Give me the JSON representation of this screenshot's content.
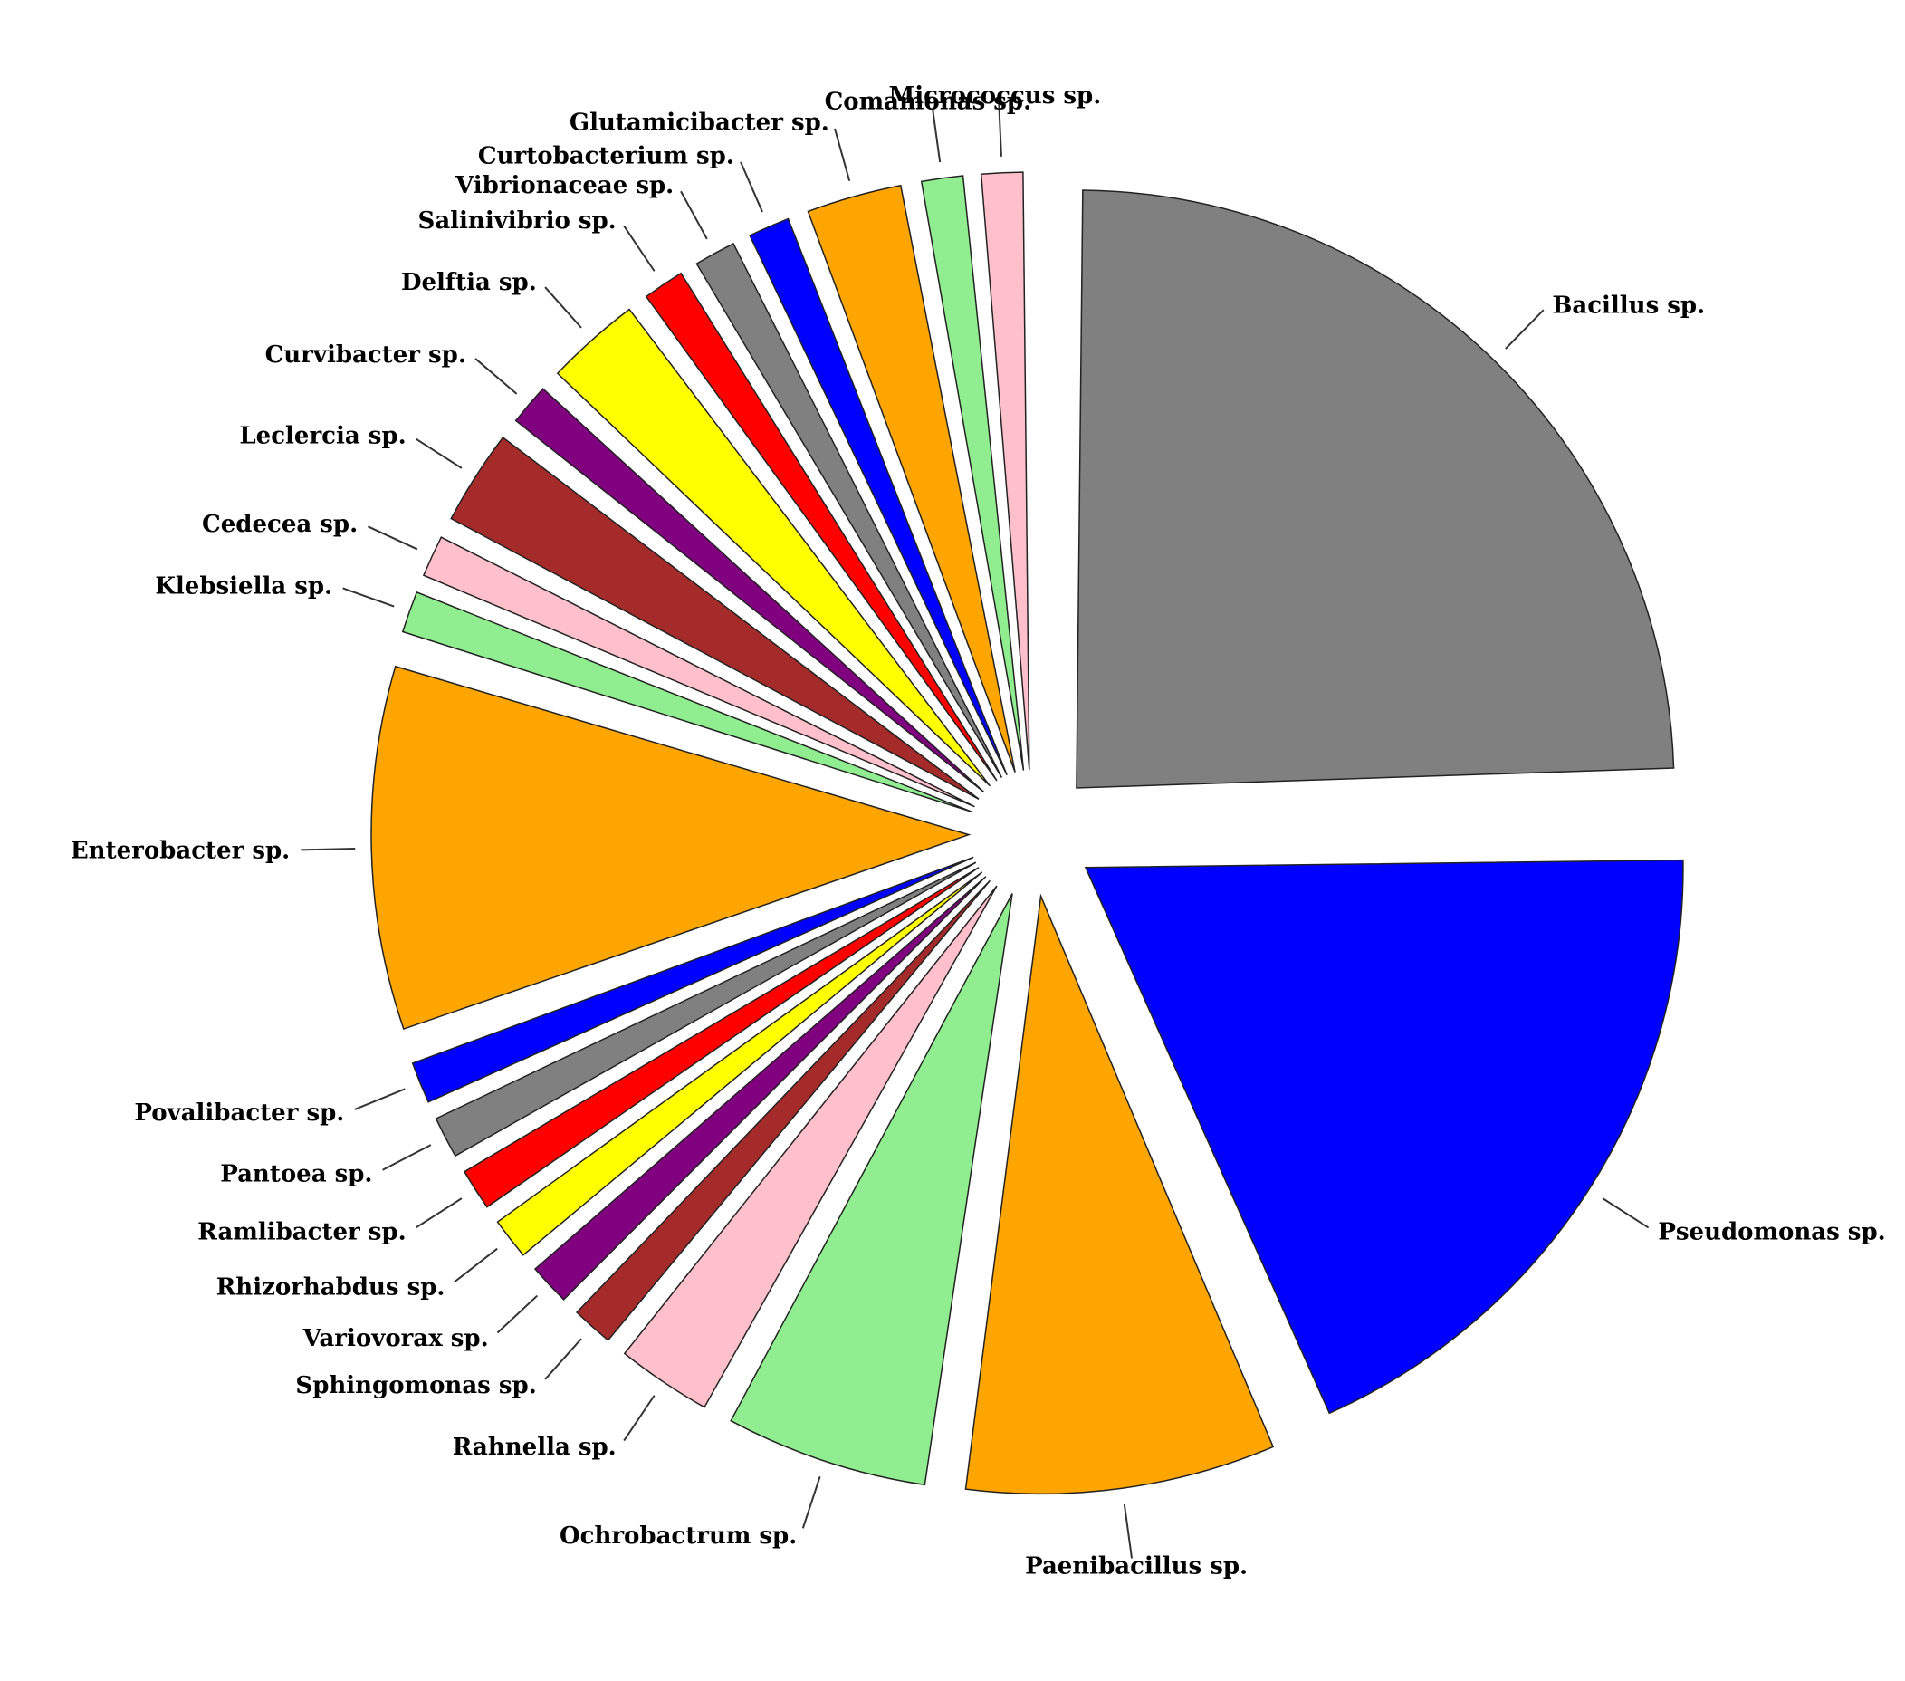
{
  "chart_data": {
    "type": "pie",
    "title": "",
    "slices": [
      {
        "label": "Bacillus sp.",
        "value": 17,
        "color": "#808080"
      },
      {
        "label": "Pseudomonas sp.",
        "value": 13,
        "color": "#0000FF"
      },
      {
        "label": "Paenibacillus sp.",
        "value": 6,
        "color": "#FFA500"
      },
      {
        "label": "Ochrobactrum sp.",
        "value": 4,
        "color": "#90EE90"
      },
      {
        "label": "Rahnella sp.",
        "value": 2,
        "color": "#FFC0CB"
      },
      {
        "label": "Sphingomonas sp.",
        "value": 1,
        "color": "#A52A2A"
      },
      {
        "label": "Variovorax sp.",
        "value": 1,
        "color": "#800080"
      },
      {
        "label": "Rhizorhabdus sp.",
        "value": 1,
        "color": "#FFFF00"
      },
      {
        "label": "Ramlibacter sp.",
        "value": 1,
        "color": "#FF0000"
      },
      {
        "label": "Pantoea sp.",
        "value": 1,
        "color": "#808080"
      },
      {
        "label": "Povalibacter sp.",
        "value": 1,
        "color": "#0000FF"
      },
      {
        "label": "Enterobacter sp.",
        "value": 7,
        "color": "#FFA500"
      },
      {
        "label": "Klebsiella sp.",
        "value": 1,
        "color": "#90EE90"
      },
      {
        "label": "Cedecea sp.",
        "value": 1,
        "color": "#FFC0CB"
      },
      {
        "label": "Leclercia sp.",
        "value": 2,
        "color": "#A52A2A"
      },
      {
        "label": "Curvibacter sp.",
        "value": 1,
        "color": "#800080"
      },
      {
        "label": "Delftia sp.",
        "value": 2,
        "color": "#FFFF00"
      },
      {
        "label": "Salinivibrio sp.",
        "value": 1,
        "color": "#FF0000"
      },
      {
        "label": "Vibrionaceae sp.",
        "value": 1,
        "color": "#808080"
      },
      {
        "label": "Curtobacterium sp.",
        "value": 1,
        "color": "#0000FF"
      },
      {
        "label": "Glutamicibacter sp.",
        "value": 2,
        "color": "#FFA500"
      },
      {
        "label": "Comamonas sp.",
        "value": 1,
        "color": "#90EE90"
      },
      {
        "label": "Micrococcus sp.",
        "value": 1,
        "color": "#FFC0CB"
      }
    ],
    "legend": "none",
    "labels": "outside with leader lines"
  }
}
